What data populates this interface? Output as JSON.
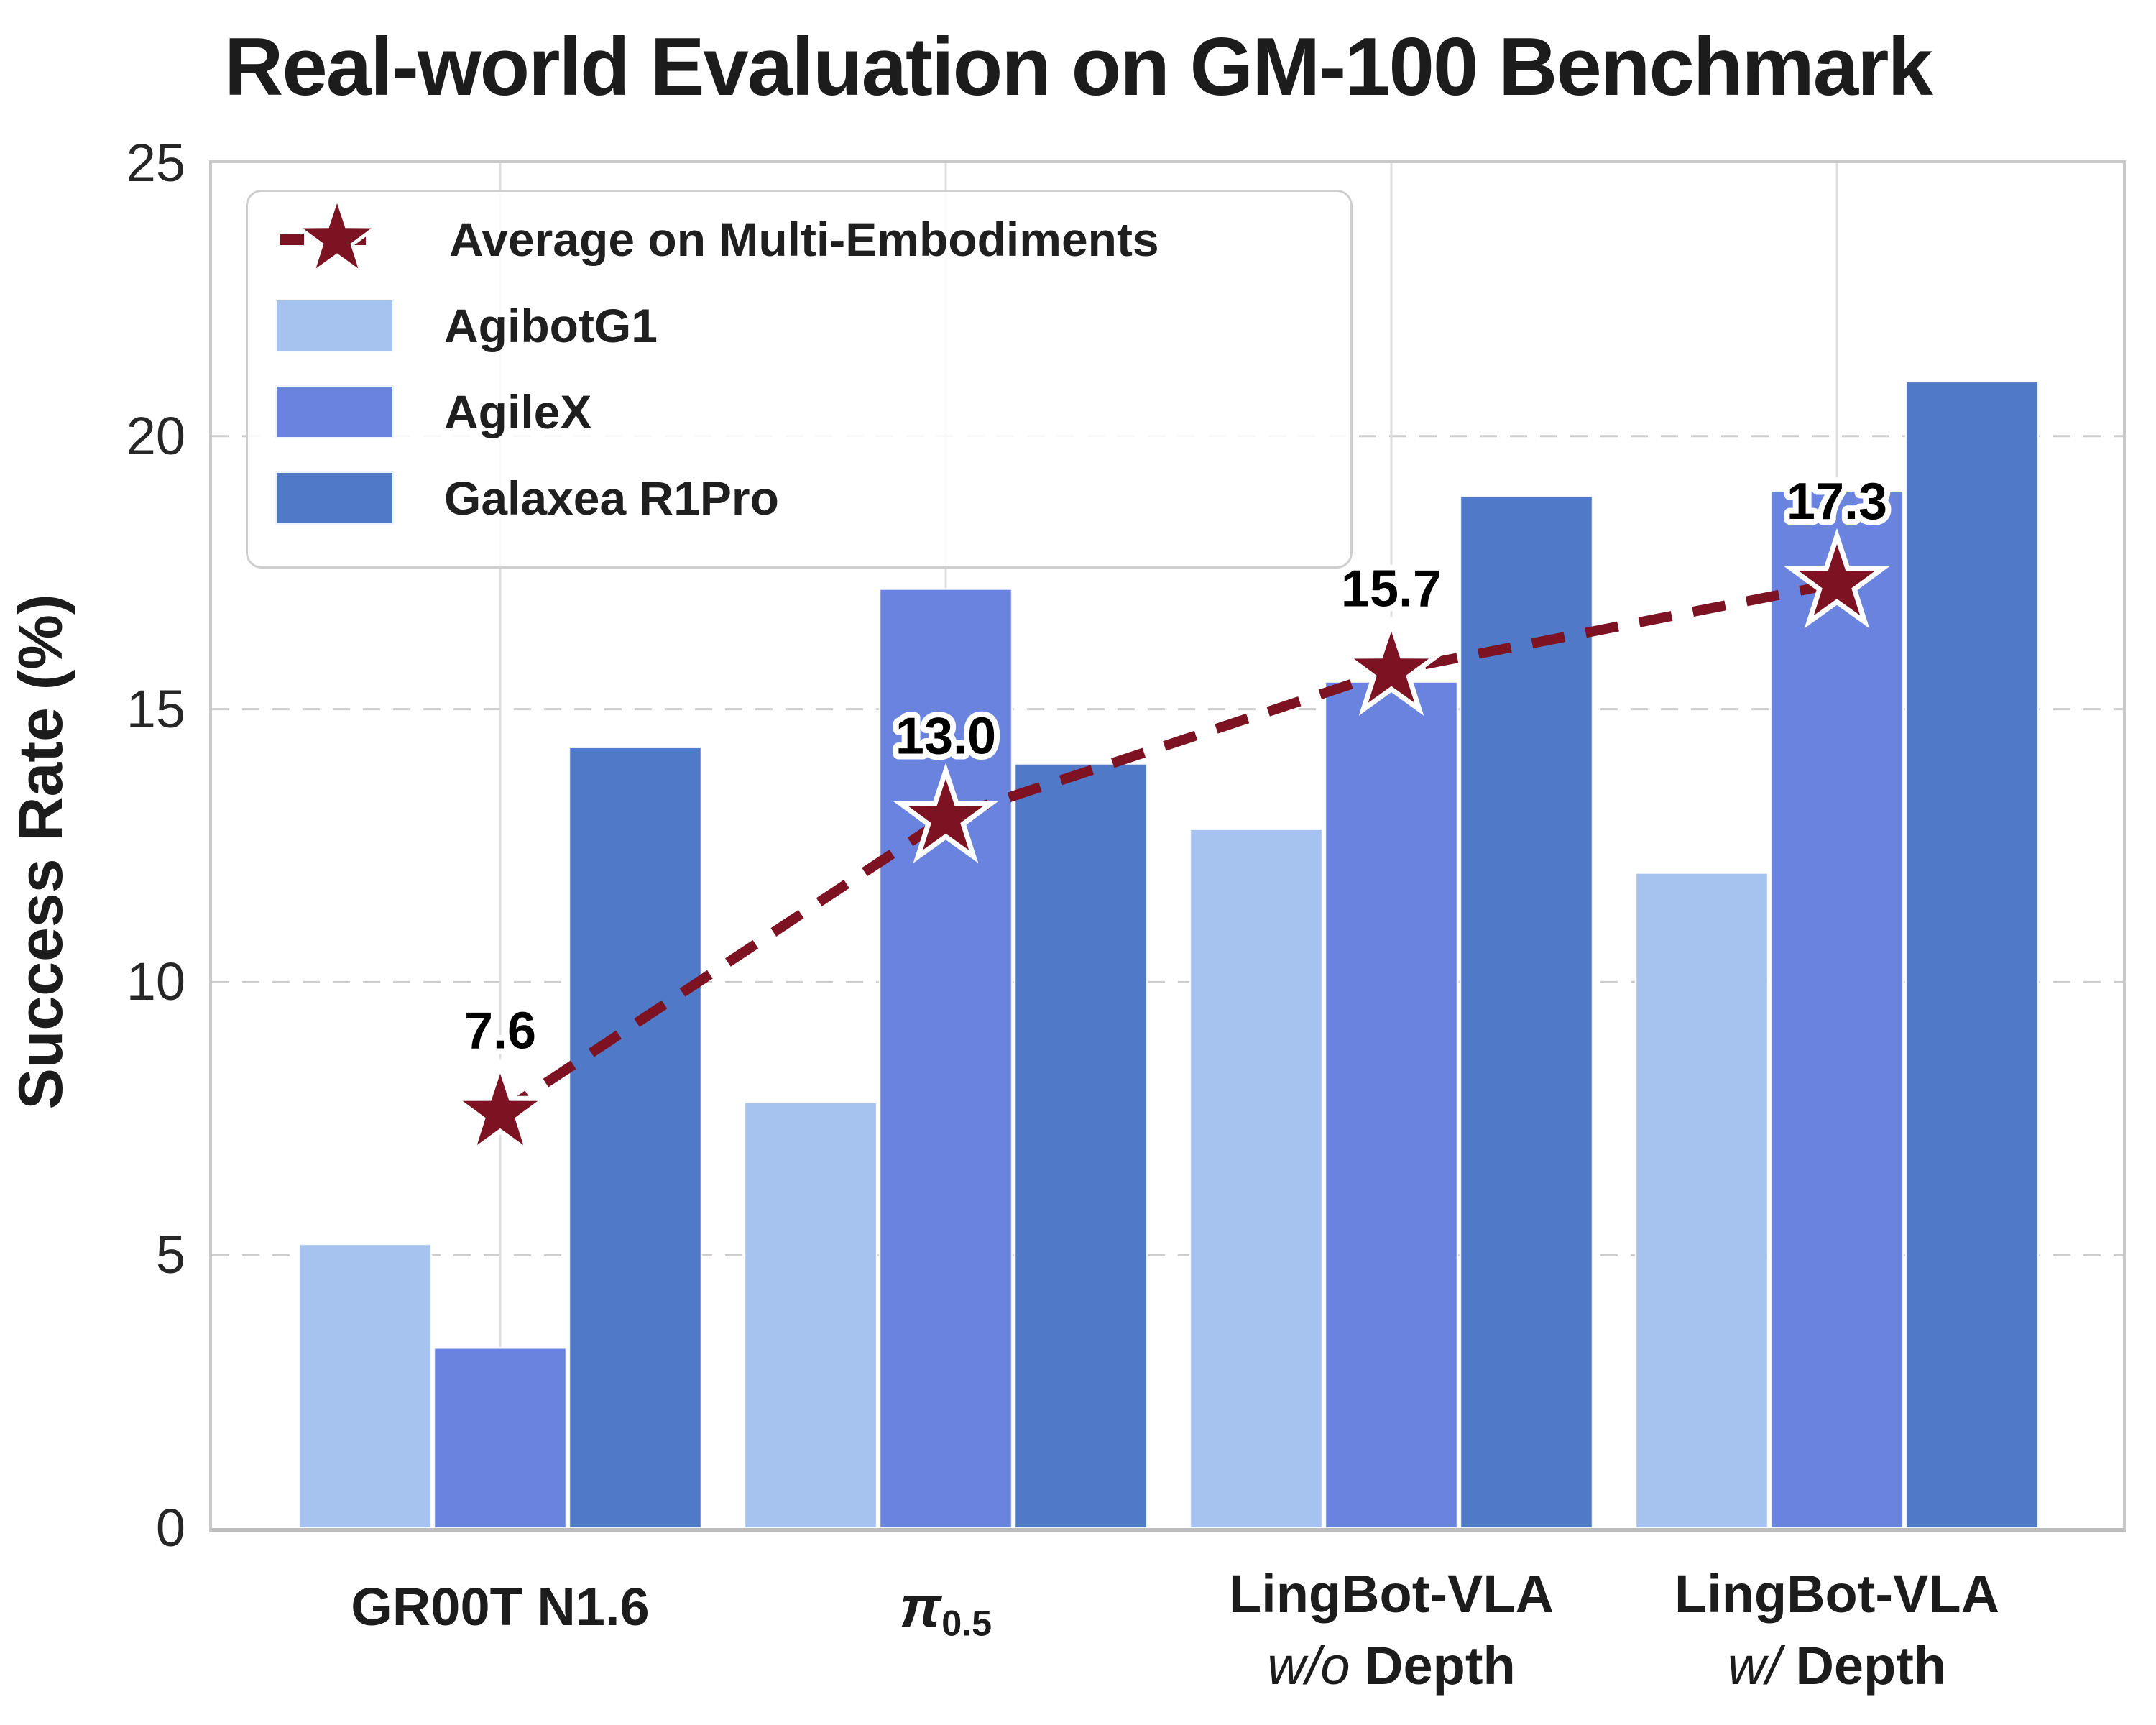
{
  "chart_data": {
    "type": "bar",
    "title": "Real-world Evaluation on GM-100 Benchmark",
    "xlabel": "",
    "ylabel": "Success Rate (%)",
    "ylim": [
      0,
      25
    ],
    "yticks": [
      0,
      5,
      10,
      15,
      20,
      25
    ],
    "grid": "horizontal dashed gridlines at 5,10,15,20; vertical solid gridline at each group center",
    "legend_position": "upper left",
    "categories": [
      "GR00T N1.6",
      "π_0.5",
      "LingBot-VLA w/o Depth",
      "LingBot-VLA w/ Depth"
    ],
    "series": [
      {
        "name": "AgibotG1",
        "color": "#a6c2ef",
        "values": [
          5.2,
          7.8,
          12.8,
          12.0
        ]
      },
      {
        "name": "AgileX",
        "color": "#6a83df",
        "values": [
          3.3,
          17.2,
          15.5,
          19.0
        ]
      },
      {
        "name": "Galaxea R1Pro",
        "color": "#5079c8",
        "values": [
          14.3,
          14.0,
          18.9,
          21.0
        ]
      }
    ],
    "average_line": {
      "name": "Average on Multi-Embodiments",
      "color": "#7d1322",
      "marker": "star",
      "marker_edge_color": "#ffffff",
      "line_style": "dashed",
      "values": [
        7.6,
        13.0,
        15.7,
        17.3
      ],
      "point_labels": [
        "7.6",
        "13.0",
        "15.7",
        "17.3"
      ]
    }
  },
  "categories_display": [
    {
      "type": "plain",
      "line1": "GR00T N1.6"
    },
    {
      "type": "pi",
      "symbol": "π",
      "subscript": "0.5"
    },
    {
      "type": "twoline",
      "line1": "LingBot-VLA",
      "line2_italic": "w/o",
      "line2_bold": "Depth"
    },
    {
      "type": "twoline",
      "line1": "LingBot-VLA",
      "line2_italic": "w/",
      "line2_bold": "Depth"
    }
  ],
  "legend": {
    "items": [
      {
        "kind": "star-line",
        "label": "Average on Multi-Embodiments"
      },
      {
        "kind": "swatch",
        "label": "AgibotG1"
      },
      {
        "kind": "swatch",
        "label": "AgileX"
      },
      {
        "kind": "swatch",
        "label": "Galaxea R1Pro"
      }
    ]
  }
}
